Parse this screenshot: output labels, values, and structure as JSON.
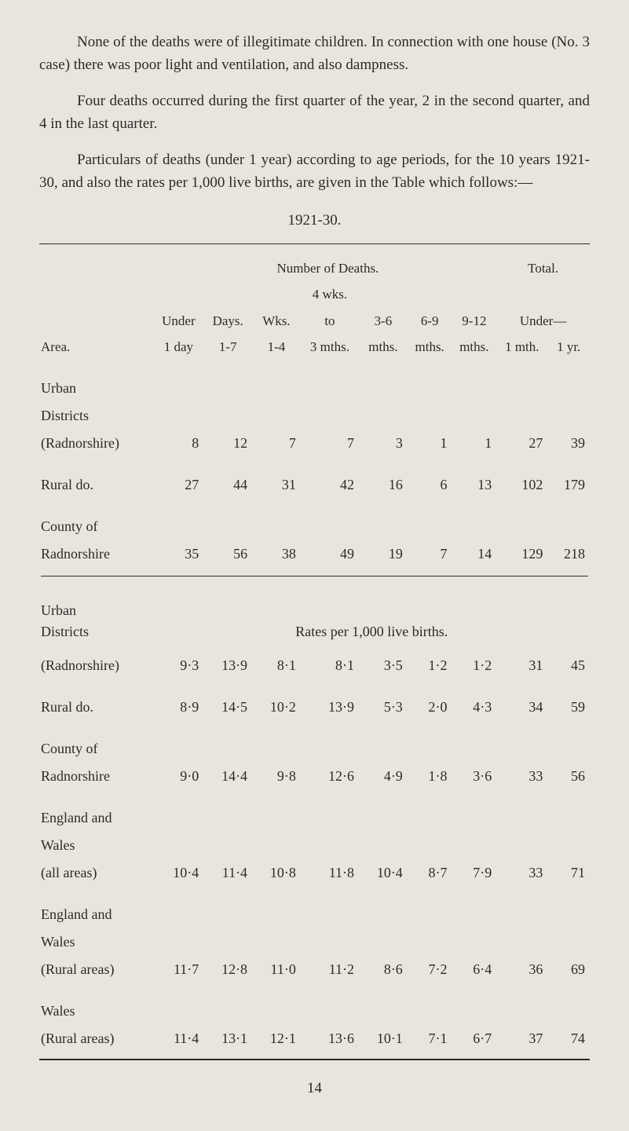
{
  "para1": "None of the deaths were of illegitimate children. In connection with one house (No. 3 case) there was poor light and ventilation, and also dampness.",
  "para2": "Four deaths occurred during the first quarter of the year, 2 in the second quarter, and 4 in the last quarter.",
  "para3": "Particulars of deaths (under 1 year) according to age periods, for the 10 years 1921-30, and also the rates per 1,000 live births, are given in the Table which follows:—",
  "table_period": "1921-30.",
  "header_number": "Number of Deaths.",
  "header_total": "Total.",
  "h_area": "Area.",
  "h_under_1day_a": "Under",
  "h_under_1day_b": "1 day",
  "h_days_a": "Days.",
  "h_days_b": "1-7",
  "h_wks_a": "Wks.",
  "h_wks_b": "1-4",
  "h_4wks_a": "4 wks.",
  "h_4wks_b": "to",
  "h_4wks_c": "3 mths.",
  "h_36": "3-6",
  "h_36b": "mths.",
  "h_69": "6-9",
  "h_69b": "mths.",
  "h_912": "9-12",
  "h_912b": "mths.",
  "h_under1_a": "Under—",
  "h_under1_b": "1 mth.",
  "h_1yr": "1 yr.",
  "rows_deaths": [
    {
      "area_a": "Urban",
      "area_b": "Districts",
      "area_c": "(Radnorshire)",
      "v": [
        "8",
        "12",
        "7",
        "7",
        "3",
        "1",
        "1",
        "27",
        "39"
      ]
    },
    {
      "area_a": "Rural do.",
      "v": [
        "27",
        "44",
        "31",
        "42",
        "16",
        "6",
        "13",
        "102",
        "179"
      ]
    },
    {
      "area_a": "County of",
      "area_b": "Radnorshire",
      "v": [
        "35",
        "56",
        "38",
        "49",
        "19",
        "7",
        "14",
        "129",
        "218"
      ]
    }
  ],
  "rates_title_a": "Urban",
  "rates_title_b": "Districts",
  "rates_label": "Rates per 1,000 live births.",
  "rows_rates": [
    {
      "area": "(Radnorshire)",
      "v": [
        "9·3",
        "13·9",
        "8·1",
        "8·1",
        "3·5",
        "1·2",
        "1·2",
        "31",
        "45"
      ]
    },
    {
      "area": "Rural do.",
      "v": [
        "8·9",
        "14·5",
        "10·2",
        "13·9",
        "5·3",
        "2·0",
        "4·3",
        "34",
        "59"
      ]
    },
    {
      "area_a": "County of",
      "area_b": "Radnorshire",
      "v": [
        "9·0",
        "14·4",
        "9·8",
        "12·6",
        "4·9",
        "1·8",
        "3·6",
        "33",
        "56"
      ]
    },
    {
      "area_a": "England and",
      "area_b": "Wales",
      "area_c": "(all areas)",
      "v": [
        "10·4",
        "11·4",
        "10·8",
        "11·8",
        "10·4",
        "8·7",
        "7·9",
        "33",
        "71"
      ]
    },
    {
      "area_a": "England and",
      "area_b": "Wales",
      "area_c": "(Rural areas)",
      "v": [
        "11·7",
        "12·8",
        "11·0",
        "11·2",
        "8·6",
        "7·2",
        "6·4",
        "36",
        "69"
      ]
    },
    {
      "area_a": "Wales",
      "area_b": "(Rural areas)",
      "v": [
        "11·4",
        "13·1",
        "12·1",
        "13·6",
        "10·1",
        "7·1",
        "6·7",
        "37",
        "74"
      ]
    }
  ],
  "page_number": "14"
}
